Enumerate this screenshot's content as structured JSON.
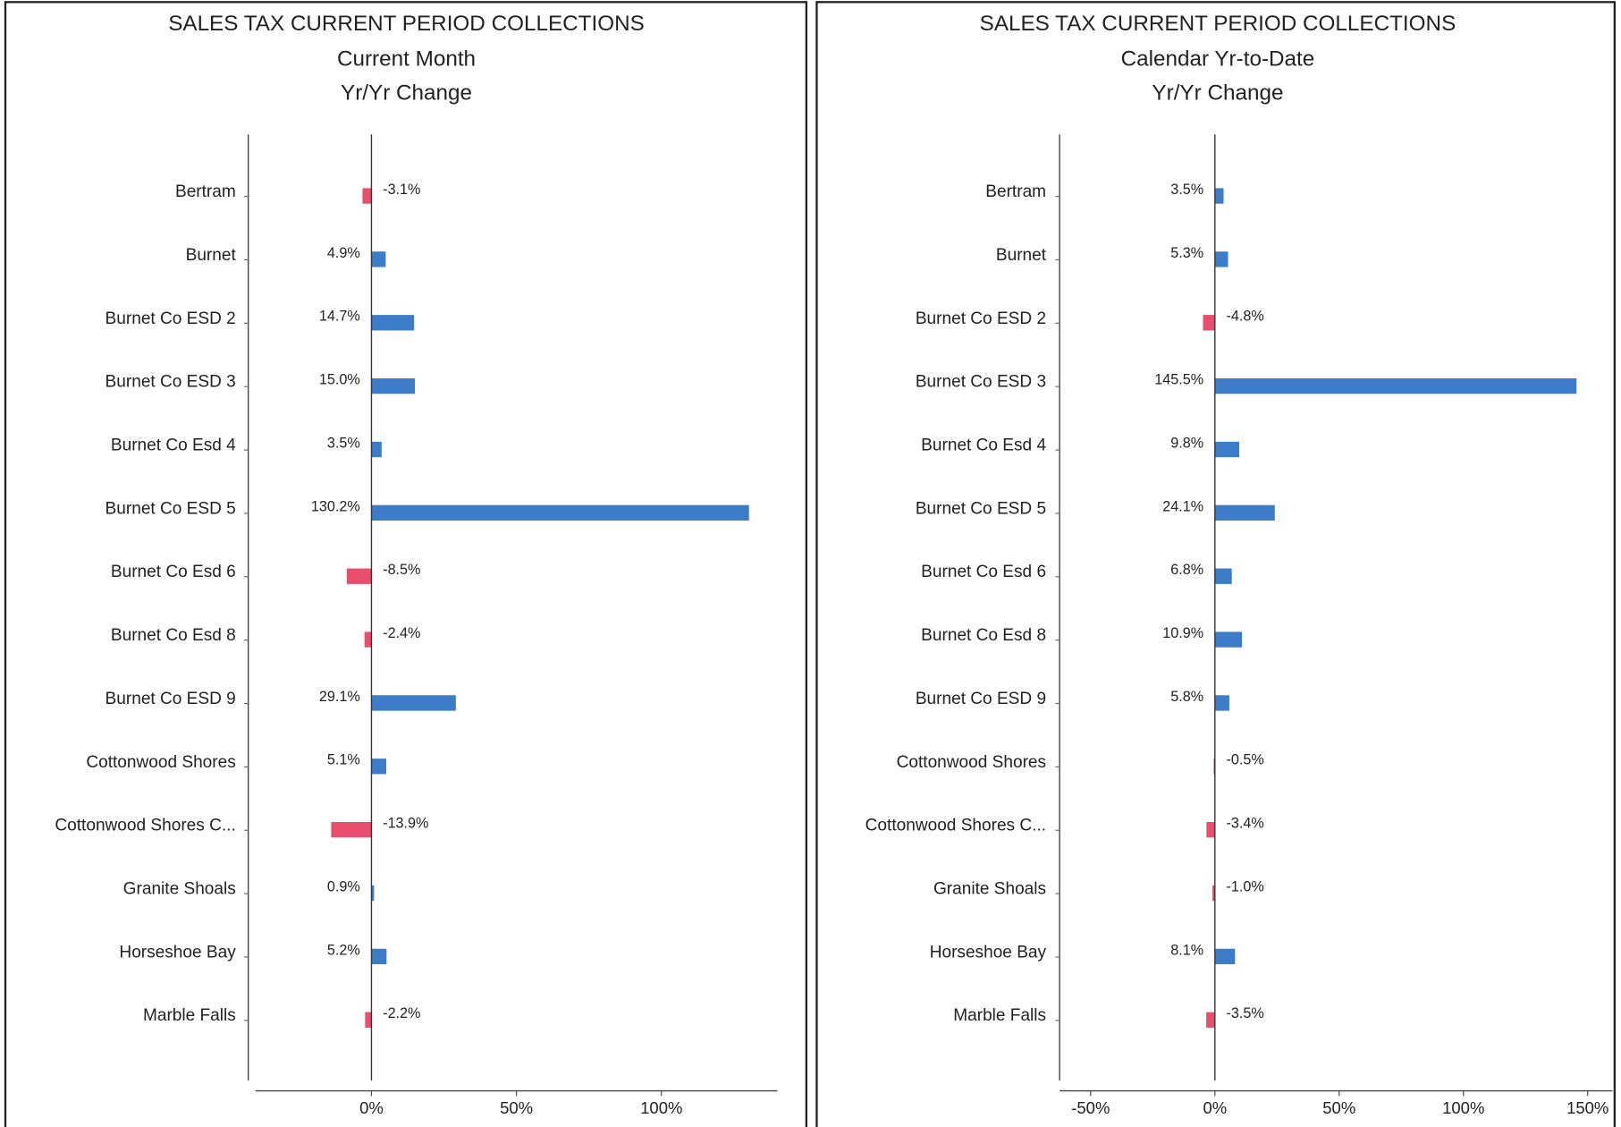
{
  "chart_data": [
    {
      "type": "bar",
      "orientation": "horizontal",
      "title": "SALES TAX CURRENT PERIOD COLLECTIONS",
      "subtitle": [
        "Current Month",
        "Yr/Yr Change"
      ],
      "categories": [
        "Bertram",
        "Burnet",
        "Burnet Co ESD 2",
        "Burnet Co ESD 3",
        "Burnet Co Esd 4",
        "Burnet Co ESD 5",
        "Burnet Co Esd 6",
        "Burnet Co Esd 8",
        "Burnet Co ESD 9",
        "Cottonwood Shores",
        "Cottonwood Shores C...",
        "Granite Shoals",
        "Horseshoe Bay",
        "Marble Falls"
      ],
      "values": [
        -3.1,
        4.9,
        14.7,
        15.0,
        3.5,
        130.2,
        -8.5,
        -2.4,
        29.1,
        5.1,
        -13.9,
        0.9,
        5.2,
        -2.2
      ],
      "value_labels": [
        "-3.1%",
        "4.9%",
        "14.7%",
        "15.0%",
        "3.5%",
        "130.2%",
        "-8.5%",
        "-2.4%",
        "29.1%",
        "5.1%",
        "-13.9%",
        "0.9%",
        "5.2%",
        "-2.2%"
      ],
      "positive_color": "#3d7cc9",
      "negative_color": "#e84f6e",
      "xlim": [
        -40,
        140
      ],
      "xticks": [
        {
          "value": 0,
          "label": "0%"
        },
        {
          "value": 50,
          "label": "50%"
        },
        {
          "value": 100,
          "label": "100%"
        }
      ]
    },
    {
      "type": "bar",
      "orientation": "horizontal",
      "title": "SALES TAX CURRENT PERIOD COLLECTIONS",
      "subtitle": [
        "Calendar Yr-to-Date",
        "Yr/Yr Change"
      ],
      "categories": [
        "Bertram",
        "Burnet",
        "Burnet Co ESD 2",
        "Burnet Co ESD 3",
        "Burnet Co Esd 4",
        "Burnet Co ESD 5",
        "Burnet Co Esd 6",
        "Burnet Co Esd 8",
        "Burnet Co ESD 9",
        "Cottonwood Shores",
        "Cottonwood Shores C...",
        "Granite Shoals",
        "Horseshoe Bay",
        "Marble Falls"
      ],
      "values": [
        3.5,
        5.3,
        -4.8,
        145.5,
        9.8,
        24.1,
        6.8,
        10.9,
        5.8,
        -0.5,
        -3.4,
        -1.0,
        8.1,
        -3.5
      ],
      "value_labels": [
        "3.5%",
        "5.3%",
        "-4.8%",
        "145.5%",
        "9.8%",
        "24.1%",
        "6.8%",
        "10.9%",
        "5.8%",
        "-0.5%",
        "-3.4%",
        "-1.0%",
        "8.1%",
        "-3.5%"
      ],
      "positive_color": "#3d7cc9",
      "negative_color": "#e84f6e",
      "xlim": [
        -62.5,
        160
      ],
      "xticks": [
        {
          "value": -50,
          "label": "-50%"
        },
        {
          "value": 0,
          "label": "0%"
        },
        {
          "value": 50,
          "label": "50%"
        },
        {
          "value": 100,
          "label": "100%"
        },
        {
          "value": 150,
          "label": "150%"
        }
      ]
    }
  ]
}
